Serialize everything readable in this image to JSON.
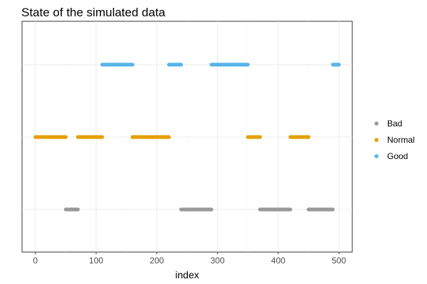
{
  "chart_data": {
    "type": "scatter",
    "title": "State of the simulated data",
    "xlabel": "index",
    "ylabel": "",
    "xlim": [
      -22,
      522
    ],
    "xticks": [
      0,
      100,
      200,
      300,
      400,
      500
    ],
    "categories": [
      "Bad",
      "Normal",
      "Good"
    ],
    "grid": true,
    "legend_position": "right",
    "series": [
      {
        "name": "Bad",
        "color": "#999999",
        "level": "Bad",
        "segments": [
          [
            50,
            70
          ],
          [
            240,
            290
          ],
          [
            370,
            420
          ],
          [
            450,
            490
          ]
        ]
      },
      {
        "name": "Normal",
        "color": "#E69F00",
        "level": "Normal",
        "segments": [
          [
            0,
            50
          ],
          [
            70,
            110
          ],
          [
            160,
            220
          ],
          [
            350,
            370
          ],
          [
            420,
            450
          ]
        ]
      },
      {
        "name": "Good",
        "color": "#56B4E9",
        "level": "Good",
        "segments": [
          [
            110,
            160
          ],
          [
            220,
            240
          ],
          [
            290,
            350
          ],
          [
            490,
            500
          ]
        ]
      }
    ]
  }
}
